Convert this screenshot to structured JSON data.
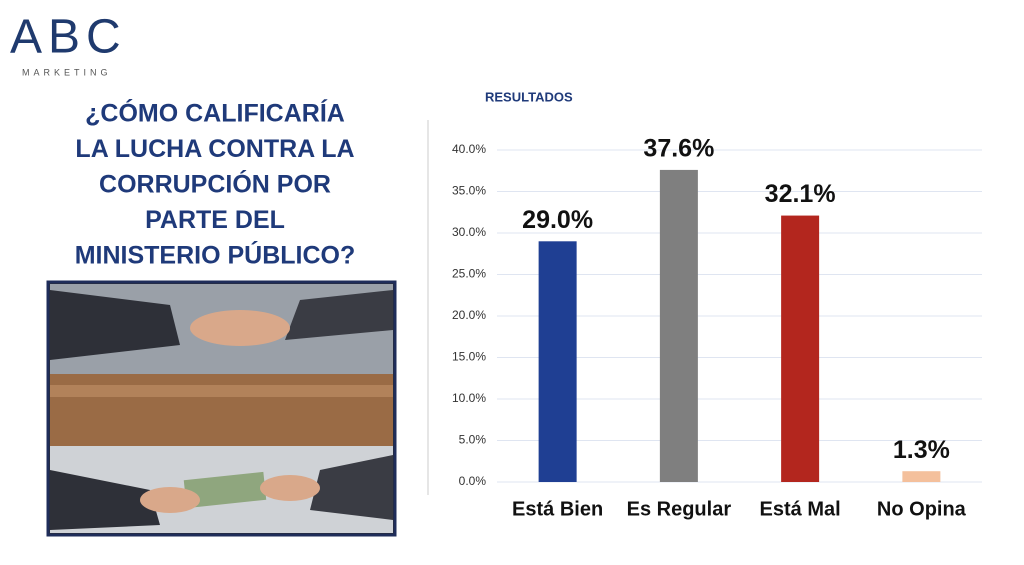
{
  "logo": {
    "name": "ABC",
    "tagline": "MARKETING"
  },
  "question": [
    "¿CÓMO CALIFICARÍA",
    "LA LUCHA CONTRA LA",
    "CORRUPCIÓN POR",
    "PARTE DEL",
    "MINISTERIO PÚBLICO?"
  ],
  "chart_data": {
    "type": "bar",
    "title": "RESULTADOS",
    "categories": [
      "Está Bien",
      "Es Regular",
      "Está Mal",
      "No Opina"
    ],
    "values": [
      29.0,
      37.6,
      32.1,
      1.3
    ],
    "value_labels": [
      "29.0%",
      "37.6%",
      "32.1%",
      "1.3%"
    ],
    "colors": [
      "#1f3f93",
      "#7f7f7f",
      "#b3261e",
      "#f4c09c"
    ],
    "ylim": [
      0,
      40
    ],
    "yticks": [
      {
        "value": 0,
        "label": "0.0%"
      },
      {
        "value": 5,
        "label": "5.0%"
      },
      {
        "value": 10,
        "label": "10.0%"
      },
      {
        "value": 15,
        "label": "15.0%"
      },
      {
        "value": 20,
        "label": "20.0%"
      },
      {
        "value": 25,
        "label": "25.0%"
      },
      {
        "value": 30,
        "label": "30.0%"
      },
      {
        "value": 35,
        "label": "35.0%"
      },
      {
        "value": 40,
        "label": "40.0%"
      }
    ],
    "grid": true
  }
}
